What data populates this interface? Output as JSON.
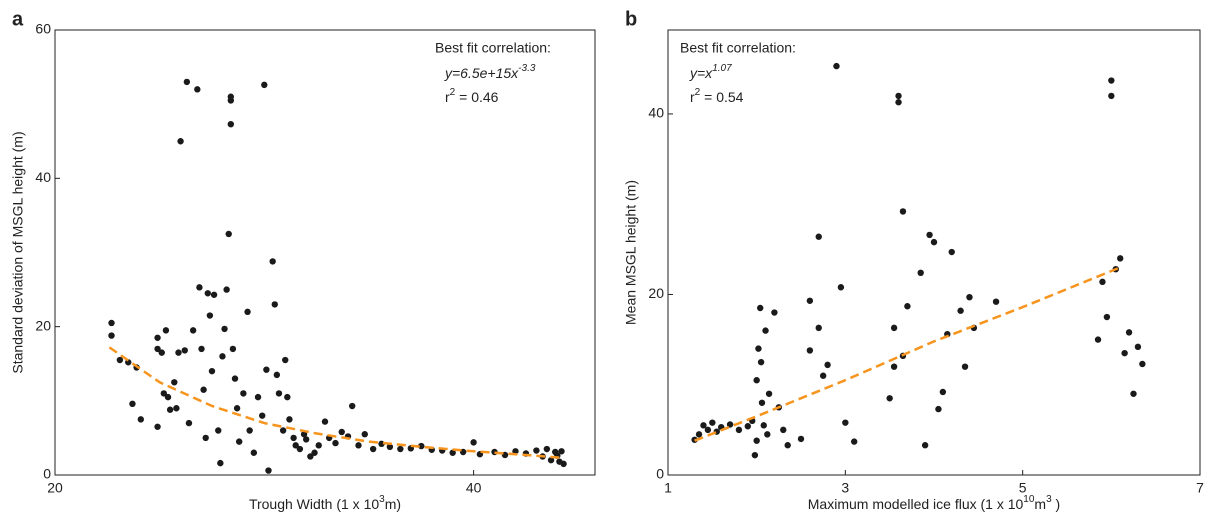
{
  "chart_data": [
    {
      "type": "scatter",
      "panel": "a",
      "xlabel": [
        "Trough Width (1 x 10",
        "3",
        "m)"
      ],
      "ylabel": "Standard deviation of MSGL height (m)",
      "annotation": {
        "heading": "Best fit correlation:",
        "equation": [
          "y=6.5e+15x",
          "-3.3"
        ],
        "r2": [
          "r",
          "2",
          " = 0.46"
        ]
      },
      "xlim": [
        20,
        45.8
      ],
      "xticks": [
        20,
        40
      ],
      "ylim": [
        0,
        60
      ],
      "yticks": [
        0,
        20,
        40,
        60
      ],
      "series": [
        {
          "type": "scatter",
          "color": "#1a1a1a",
          "x": [
            22.7,
            22.7,
            23.1,
            23.5,
            23.7,
            24.1,
            23.9,
            24.9,
            24.9,
            24.9,
            25.1,
            25.2,
            25.3,
            25.4,
            25.5,
            25.7,
            25.8,
            25.9,
            26.0,
            26.3,
            26.2,
            26.4,
            26.6,
            26.8,
            26.9,
            27.0,
            27.1,
            27.2,
            27.3,
            27.4,
            27.5,
            27.6,
            27.8,
            27.9,
            28.0,
            28.1,
            28.2,
            28.3,
            28.4,
            28.4,
            28.4,
            28.5,
            28.6,
            28.7,
            28.8,
            29.0,
            29.2,
            29.3,
            29.5,
            29.7,
            29.9,
            30.0,
            30.1,
            30.2,
            30.4,
            30.5,
            30.6,
            30.7,
            30.9,
            31.0,
            31.1,
            31.2,
            31.4,
            31.5,
            31.7,
            31.9,
            32.0,
            32.2,
            32.4,
            32.6,
            32.9,
            33.1,
            33.4,
            33.7,
            34.0,
            34.2,
            34.5,
            34.8,
            35.2,
            35.6,
            36.0,
            36.5,
            37.0,
            37.5,
            38.0,
            38.5,
            39.0,
            39.5,
            40.0,
            40.3,
            41.0,
            41.5,
            42.0,
            42.5,
            43.0,
            43.3,
            43.5,
            43.7,
            43.9,
            44.0,
            44.1,
            44.2,
            44.3
          ],
          "values": [
            20.5,
            18.8,
            15.5,
            15.2,
            9.6,
            7.5,
            14.5,
            18.5,
            17,
            6.5,
            16.5,
            11,
            19.5,
            10.5,
            8.8,
            12.5,
            9,
            16.5,
            45,
            53,
            16.8,
            7,
            19.5,
            52,
            25.3,
            17,
            11.5,
            5,
            24.5,
            21.5,
            14,
            24.3,
            6,
            1.6,
            16,
            19.7,
            25,
            32.5,
            51,
            50.5,
            47.3,
            17,
            13,
            9,
            4.5,
            11,
            22,
            6,
            3,
            10.5,
            8,
            52.6,
            14.2,
            0.6,
            28.8,
            23,
            13.5,
            11,
            6,
            15.5,
            10.5,
            7.5,
            5,
            4,
            3.5,
            5.5,
            4.8,
            2.5,
            3,
            4,
            7.2,
            5,
            4.3,
            5.8,
            5.2,
            9.3,
            4,
            5.5,
            3.5,
            4.2,
            3.8,
            3.5,
            3.6,
            3.9,
            3.4,
            3.3,
            3,
            3.1,
            4.4,
            2.8,
            3.1,
            2.7,
            3.2,
            2.9,
            3.3,
            2.5,
            3.5,
            2,
            3.1,
            2.6,
            1.8,
            3.2,
            1.5
          ]
        },
        {
          "type": "line",
          "color": "#f7941d",
          "style": "dashed",
          "x": [
            22.6,
            25,
            27.5,
            30,
            32.5,
            35,
            37.5,
            40,
            42.5,
            44.3
          ],
          "values": [
            17.2,
            12.5,
            9.3,
            7,
            5.6,
            4.5,
            3.8,
            3.2,
            2.7,
            2.3
          ]
        }
      ]
    },
    {
      "type": "scatter",
      "panel": "b",
      "xlabel": [
        "Maximum modelled ice flux (1 x 10",
        "10",
        "m",
        "3",
        " )"
      ],
      "ylabel": "Mean MSGL height (m)",
      "annotation": {
        "heading": "Best fit correlation:",
        "equation": [
          "y=x",
          "1.07"
        ],
        "r2": [
          "r",
          "2",
          " = 0.54"
        ]
      },
      "xlim": [
        1,
        7
      ],
      "xticks": [
        1,
        3,
        5,
        7
      ],
      "ylim": [
        0,
        49.3
      ],
      "yticks": [
        0,
        20,
        40
      ],
      "series": [
        {
          "type": "scatter",
          "color": "#1a1a1a",
          "x": [
            1.3,
            1.35,
            1.4,
            1.45,
            1.5,
            1.55,
            1.6,
            1.7,
            1.8,
            1.9,
            1.95,
            2.0,
            2.02,
            2.04,
            2.05,
            2.06,
            2.08,
            2.1,
            2.12,
            2.14,
            2.0,
            1.98,
            2.2,
            2.25,
            2.3,
            2.35,
            2.5,
            2.6,
            2.6,
            2.7,
            2.7,
            2.75,
            2.8,
            2.9,
            2.95,
            3.0,
            3.1,
            3.5,
            3.55,
            3.6,
            3.6,
            3.65,
            3.7,
            3.65,
            3.55,
            3.85,
            3.9,
            3.95,
            4.0,
            4.05,
            4.1,
            4.2,
            4.15,
            4.3,
            4.35,
            4.4,
            4.45,
            4.7,
            5.85,
            5.9,
            5.95,
            6.0,
            6.0,
            6.05,
            6.1,
            6.15,
            6.2,
            6.25,
            6.3,
            6.35
          ],
          "values": [
            3.9,
            4.5,
            5.5,
            5,
            5.8,
            4.8,
            5.3,
            5.6,
            5,
            5.4,
            6,
            10.5,
            14,
            18.5,
            12.5,
            8,
            5.5,
            16,
            4.5,
            9,
            3.8,
            2.2,
            18,
            7.5,
            5,
            3.3,
            4,
            13.8,
            19.3,
            26.4,
            16.3,
            11,
            12.2,
            45.3,
            20.8,
            5.8,
            3.7,
            8.5,
            12,
            42,
            41.3,
            29.2,
            18.7,
            13.2,
            16.3,
            22.4,
            3.3,
            26.6,
            25.8,
            7.3,
            9.2,
            24.7,
            15.6,
            18.2,
            12,
            19.7,
            16.3,
            19.2,
            15,
            21.4,
            17.5,
            43.7,
            42,
            22.8,
            24,
            13.5,
            15.8,
            9,
            14.2,
            12.3
          ]
        },
        {
          "type": "line",
          "color": "#f7941d",
          "style": "dashed",
          "x": [
            1.3,
            2,
            3,
            4,
            5,
            6.1
          ],
          "values": [
            3.8,
            6.5,
            10.5,
            14.8,
            18.6,
            23
          ]
        }
      ]
    }
  ]
}
